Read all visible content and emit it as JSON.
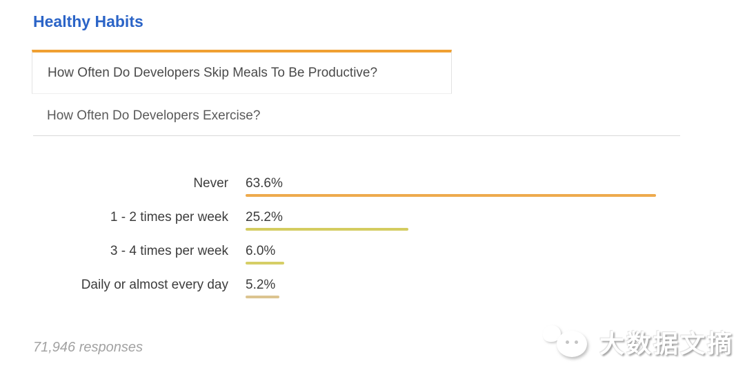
{
  "page": {
    "title": "Healthy Habits"
  },
  "tabs": [
    {
      "label": "How Often Do Developers Skip Meals To Be Productive?",
      "active": true
    },
    {
      "label": "How Often Do Developers Exercise?",
      "active": false
    }
  ],
  "chart_data": {
    "type": "bar",
    "orientation": "horizontal",
    "title": "How Often Do Developers Skip Meals To Be Productive?",
    "categories": [
      "Never",
      "1 - 2 times per week",
      "3 - 4 times per week",
      "Daily or almost every day"
    ],
    "values": [
      63.6,
      25.2,
      6.0,
      5.2
    ],
    "value_labels": [
      "63.6%",
      "25.2%",
      "6.0%",
      "5.2%"
    ],
    "bar_colors": [
      "#eeaa4d",
      "#d4cc60",
      "#d6ce66",
      "#dcc490"
    ],
    "xlim": [
      0,
      100
    ],
    "grid": false,
    "legend": false
  },
  "footer": {
    "responses": "71,946 responses"
  },
  "watermark": {
    "text": "大数据文摘",
    "icon": "wechat-chat-bubbles"
  },
  "colors": {
    "title_blue": "#2b64c7",
    "tab_active_top_border": "#f0a032",
    "divider": "#d9d9d9",
    "label_text": "#3c3c3c",
    "responses_text": "#a2a2a2"
  }
}
